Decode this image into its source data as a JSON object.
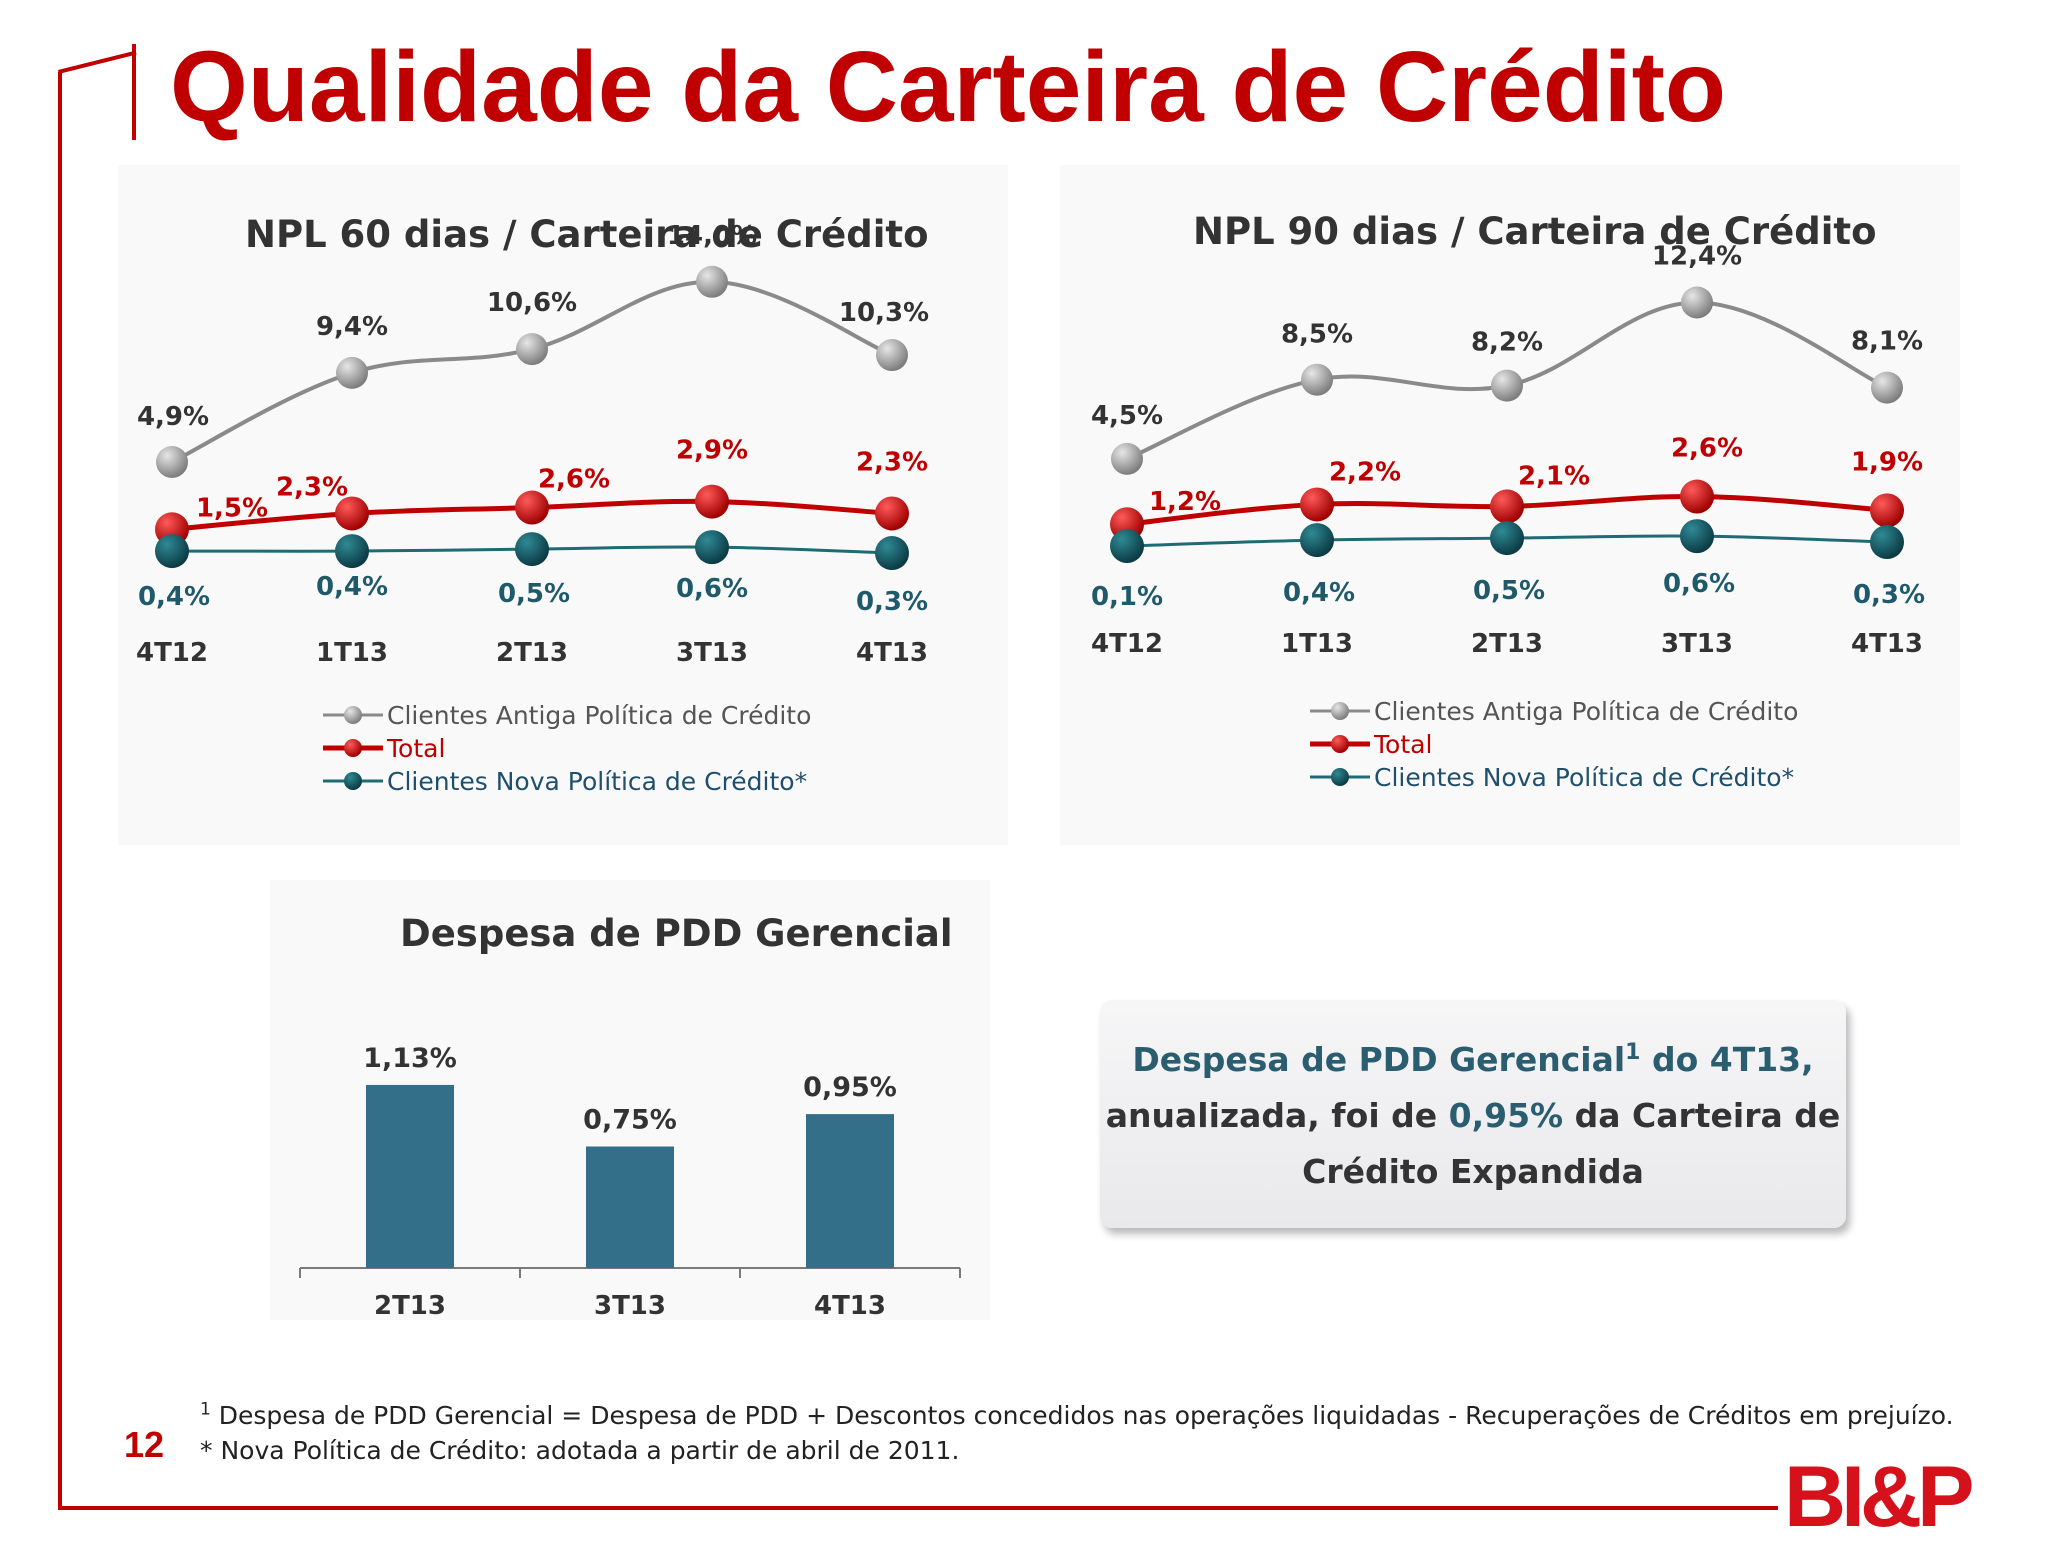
{
  "title": "Qualidade da Carteira de Crédito",
  "page_number": "12",
  "logo_text": "BI&P",
  "colors": {
    "accent_red": "#c00000",
    "series_antiga": "#8a8a8a",
    "series_total": "#c00000",
    "series_nova": "#1f6b73",
    "bar": "#336f89",
    "callout_highlight": "#2a5d70"
  },
  "legend": [
    {
      "key": "antiga",
      "label": "Clientes Antiga Política de Crédito",
      "color": "#8a8a8a",
      "label_color": "#555555"
    },
    {
      "key": "total",
      "label": "Total",
      "color": "#c00000",
      "label_color": "#c00000"
    },
    {
      "key": "nova",
      "label": "Clientes Nova Política de Crédito*",
      "color": "#1f6b73",
      "label_color": "#1f4f6b"
    }
  ],
  "callout": {
    "part1": "Despesa de PDD Gerencial",
    "sup": "1",
    "part2": " do 4T13,",
    "part3": "anualizada, foi de ",
    "value": "0,95%",
    "part4": " da Carteira de",
    "part5": "Crédito Expandida"
  },
  "footnotes": {
    "note1_marker": "1",
    "note1": " Despesa de PDD Gerencial = Despesa de PDD + Descontos concedidos nas operações liquidadas - Recuperações de Créditos em prejuízo.",
    "note2": "* Nova Política de Crédito: adotada a partir de abril de 2011."
  },
  "chart_data": [
    {
      "type": "line",
      "title": "NPL 60 dias / Carteira de Crédito",
      "categories": [
        "4T12",
        "1T13",
        "2T13",
        "3T13",
        "4T13"
      ],
      "unit": "%",
      "series": [
        {
          "name": "Clientes Antiga Política de Crédito",
          "key": "antiga",
          "values": [
            4.9,
            9.4,
            10.6,
            14.0,
            10.3
          ],
          "labels": [
            "4,9%",
            "9,4%",
            "10,6%",
            "14,0%",
            "10,3%"
          ]
        },
        {
          "name": "Total",
          "key": "total",
          "values": [
            1.5,
            2.3,
            2.6,
            2.9,
            2.3
          ],
          "labels": [
            "1,5%",
            "2,3%",
            "2,6%",
            "2,9%",
            "2,3%"
          ]
        },
        {
          "name": "Clientes Nova Política de Crédito*",
          "key": "nova",
          "values": [
            0.4,
            0.4,
            0.5,
            0.6,
            0.3
          ],
          "labels": [
            "0,4%",
            "0,4%",
            "0,5%",
            "0,6%",
            "0,3%"
          ]
        }
      ]
    },
    {
      "type": "line",
      "title": "NPL 90 dias / Carteira de Crédito",
      "categories": [
        "4T12",
        "1T13",
        "2T13",
        "3T13",
        "4T13"
      ],
      "unit": "%",
      "series": [
        {
          "name": "Clientes Antiga Política de Crédito",
          "key": "antiga",
          "values": [
            4.5,
            8.5,
            8.2,
            12.4,
            8.1
          ],
          "labels": [
            "4,5%",
            "8,5%",
            "8,2%",
            "12,4%",
            "8,1%"
          ]
        },
        {
          "name": "Total",
          "key": "total",
          "values": [
            1.2,
            2.2,
            2.1,
            2.6,
            1.9
          ],
          "labels": [
            "1,2%",
            "2,2%",
            "2,1%",
            "2,6%",
            "1,9%"
          ]
        },
        {
          "name": "Clientes Nova Política de Crédito*",
          "key": "nova",
          "values": [
            0.1,
            0.4,
            0.5,
            0.6,
            0.3
          ],
          "labels": [
            "0,1%",
            "0,4%",
            "0,5%",
            "0,6%",
            "0,3%"
          ]
        }
      ]
    },
    {
      "type": "bar",
      "title": "Despesa de PDD Gerencial",
      "categories": [
        "2T13",
        "3T13",
        "4T13"
      ],
      "unit": "%",
      "values": [
        1.13,
        0.75,
        0.95
      ],
      "labels": [
        "1,13%",
        "0,75%",
        "0,95%"
      ]
    }
  ]
}
